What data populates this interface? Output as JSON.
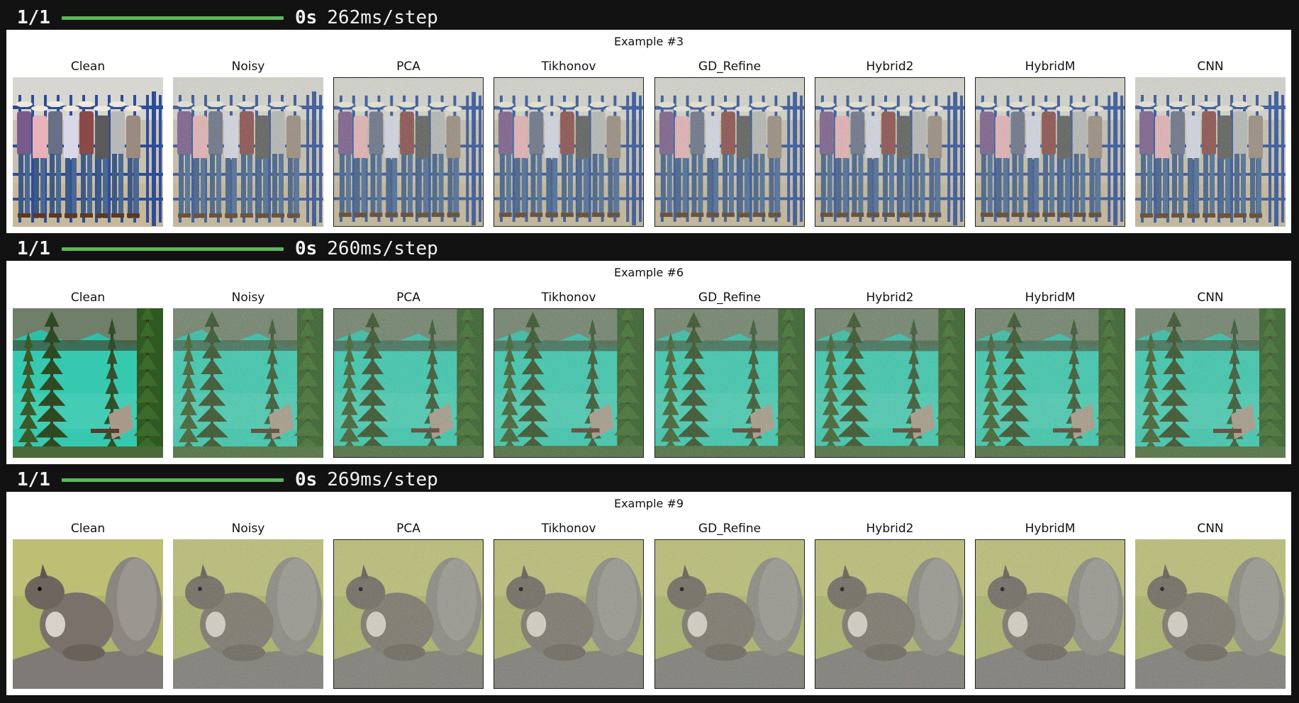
{
  "progress_lines": [
    {
      "count": "1/1",
      "time": "0s",
      "rate": "262ms/step"
    },
    {
      "count": "1/1",
      "time": "0s",
      "rate": "260ms/step"
    },
    {
      "count": "1/1",
      "time": "0s",
      "rate": "269ms/step"
    }
  ],
  "figures": [
    {
      "title": "Example #3",
      "scene": "cowboys"
    },
    {
      "title": "Example #6",
      "scene": "lake"
    },
    {
      "title": "Example #9",
      "scene": "squirrel"
    }
  ],
  "panel_titles": [
    "Clean",
    "Noisy",
    "PCA",
    "Tikhonov",
    "GD_Refine",
    "Hybrid2",
    "HybridM",
    "CNN"
  ],
  "colors": {
    "background": "#121212",
    "progress_bar": "#5cb85c",
    "figure_bg": "#ffffff"
  }
}
